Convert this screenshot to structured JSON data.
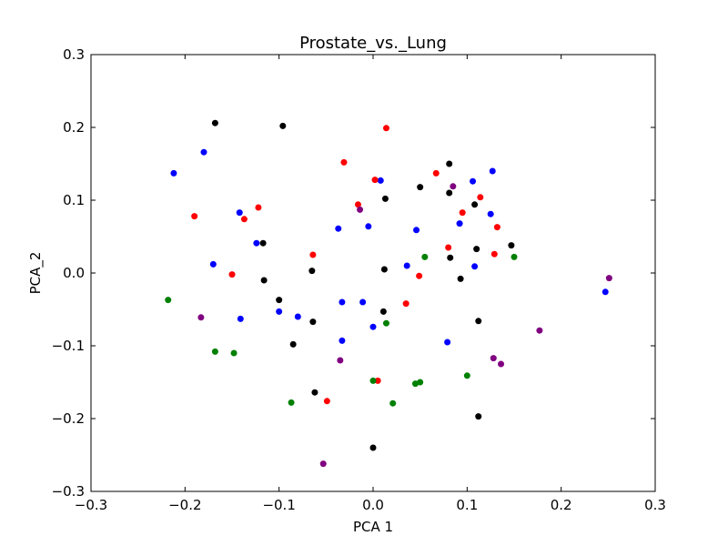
{
  "chart_data": {
    "type": "scatter",
    "title": "Prostate_vs._Lung",
    "xlabel": "PCA 1",
    "ylabel": "PCA_2",
    "xlim": [
      -0.3,
      0.3
    ],
    "ylim": [
      -0.3,
      0.3
    ],
    "grid": false,
    "x_ticks": [
      -0.3,
      -0.2,
      -0.1,
      0.0,
      0.1,
      0.2,
      0.3
    ],
    "x_tick_labels": [
      "−0.3",
      "−0.2",
      "−0.1",
      "0.0",
      "0.1",
      "0.2",
      "0.3"
    ],
    "y_ticks": [
      0.3,
      0.2,
      0.1,
      0.0,
      -0.1,
      -0.2,
      -0.3
    ],
    "y_tick_labels": [
      "0.3",
      "0.2",
      "0.1",
      "0.0",
      "−0.1",
      "−0.2",
      "−0.3"
    ],
    "series": [
      {
        "color": "#0000ff",
        "points": [
          [
            -0.212,
            0.137
          ],
          [
            -0.18,
            0.166
          ],
          [
            -0.17,
            0.012
          ],
          [
            -0.142,
            0.083
          ],
          [
            -0.141,
            -0.063
          ],
          [
            -0.124,
            0.041
          ],
          [
            -0.1,
            -0.053
          ],
          [
            -0.08,
            -0.06
          ],
          [
            -0.037,
            0.061
          ],
          [
            -0.033,
            -0.04
          ],
          [
            -0.033,
            -0.093
          ],
          [
            -0.011,
            -0.04
          ],
          [
            -0.005,
            0.064
          ],
          [
            0.0,
            -0.074
          ],
          [
            0.008,
            0.127
          ],
          [
            0.036,
            0.01
          ],
          [
            0.046,
            0.059
          ],
          [
            0.079,
            -0.095
          ],
          [
            0.092,
            0.068
          ],
          [
            0.106,
            0.126
          ],
          [
            0.108,
            0.009
          ],
          [
            0.125,
            0.081
          ],
          [
            0.127,
            0.14
          ],
          [
            0.247,
            -0.026
          ]
        ]
      },
      {
        "color": "#ff0000",
        "points": [
          [
            -0.19,
            0.078
          ],
          [
            -0.15,
            -0.002
          ],
          [
            -0.137,
            0.074
          ],
          [
            -0.122,
            0.09
          ],
          [
            -0.064,
            0.025
          ],
          [
            -0.049,
            -0.176
          ],
          [
            -0.031,
            0.152
          ],
          [
            -0.016,
            0.094
          ],
          [
            0.002,
            0.128
          ],
          [
            0.005,
            -0.148
          ],
          [
            0.014,
            0.199
          ],
          [
            0.035,
            -0.042
          ],
          [
            0.049,
            -0.004
          ],
          [
            0.067,
            0.137
          ],
          [
            0.08,
            0.035
          ],
          [
            0.095,
            0.083
          ],
          [
            0.114,
            0.104
          ],
          [
            0.129,
            0.026
          ],
          [
            0.132,
            0.063
          ]
        ]
      },
      {
        "color": "#000000",
        "points": [
          [
            -0.168,
            0.206
          ],
          [
            -0.117,
            0.041
          ],
          [
            -0.116,
            -0.01
          ],
          [
            -0.1,
            -0.037
          ],
          [
            -0.096,
            0.202
          ],
          [
            -0.085,
            -0.098
          ],
          [
            -0.065,
            0.003
          ],
          [
            -0.064,
            -0.067
          ],
          [
            -0.062,
            -0.164
          ],
          [
            0.0,
            -0.24
          ],
          [
            0.011,
            -0.053
          ],
          [
            0.012,
            0.005
          ],
          [
            0.013,
            0.102
          ],
          [
            0.05,
            0.118
          ],
          [
            0.081,
            0.15
          ],
          [
            0.081,
            0.11
          ],
          [
            0.082,
            0.021
          ],
          [
            0.093,
            -0.008
          ],
          [
            0.108,
            0.094
          ],
          [
            0.11,
            0.033
          ],
          [
            0.112,
            -0.066
          ],
          [
            0.112,
            -0.197
          ],
          [
            0.147,
            0.038
          ]
        ]
      },
      {
        "color": "#008000",
        "points": [
          [
            -0.218,
            -0.037
          ],
          [
            -0.168,
            -0.108
          ],
          [
            -0.148,
            -0.11
          ],
          [
            -0.087,
            -0.178
          ],
          [
            0.0,
            -0.148
          ],
          [
            0.014,
            -0.069
          ],
          [
            0.021,
            -0.179
          ],
          [
            0.045,
            -0.152
          ],
          [
            0.05,
            -0.15
          ],
          [
            0.055,
            0.022
          ],
          [
            0.1,
            -0.141
          ],
          [
            0.15,
            0.022
          ]
        ]
      },
      {
        "color": "#800080",
        "points": [
          [
            -0.183,
            -0.061
          ],
          [
            -0.035,
            -0.12
          ],
          [
            -0.053,
            -0.262
          ],
          [
            -0.014,
            0.087
          ],
          [
            0.085,
            0.119
          ],
          [
            0.128,
            -0.117
          ],
          [
            0.136,
            -0.125
          ],
          [
            0.177,
            -0.079
          ],
          [
            0.251,
            -0.007
          ]
        ]
      }
    ]
  }
}
